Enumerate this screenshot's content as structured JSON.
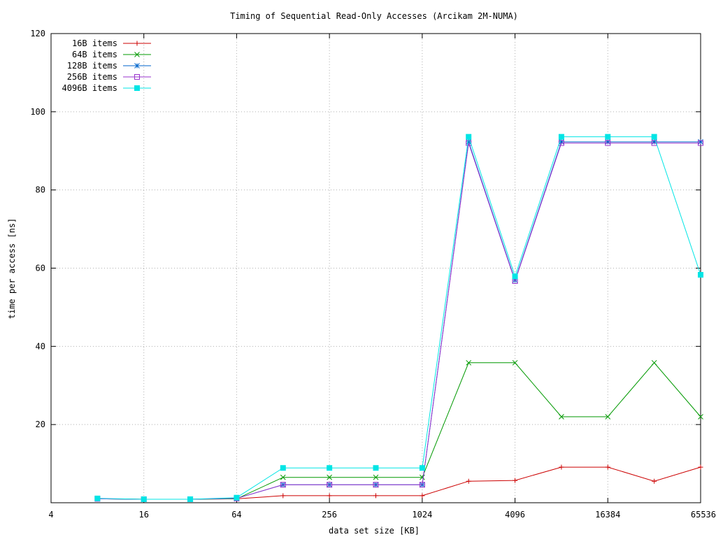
{
  "chart_data": {
    "type": "line",
    "title": "Timing of Sequential Read-Only Accesses (Arcikam 2M-NUMA)",
    "xlabel": "data set size [KB]",
    "ylabel": "time per access [ns]",
    "x_scale": "log2",
    "xlim": [
      4,
      65536
    ],
    "ylim": [
      0,
      120
    ],
    "x_ticks": [
      4,
      16,
      64,
      256,
      1024,
      4096,
      16384,
      65536
    ],
    "y_ticks": [
      20,
      40,
      60,
      80,
      100,
      120
    ],
    "grid": true,
    "legend_position": "top-left",
    "x": [
      8,
      16,
      32,
      64,
      128,
      256,
      512,
      1024,
      2048,
      4096,
      8192,
      16384,
      32768,
      65536
    ],
    "series": [
      {
        "name": "16B items",
        "color": "#cc0000",
        "marker": "plus",
        "values": [
          1.0,
          0.9,
          0.9,
          1.0,
          1.8,
          1.8,
          1.8,
          1.8,
          5.5,
          5.7,
          9.1,
          9.1,
          5.5,
          9.1
        ]
      },
      {
        "name": "64B items",
        "color": "#009900",
        "marker": "x",
        "values": [
          1.0,
          0.9,
          0.9,
          1.0,
          6.5,
          6.5,
          6.5,
          6.5,
          35.8,
          35.8,
          22.0,
          22.0,
          35.8,
          22.0
        ]
      },
      {
        "name": "128B items",
        "color": "#0066cc",
        "marker": "star",
        "values": [
          1.0,
          0.9,
          0.9,
          1.1,
          4.6,
          4.6,
          4.6,
          4.6,
          92.3,
          56.9,
          92.3,
          92.3,
          92.3,
          92.3
        ]
      },
      {
        "name": "256B items",
        "color": "#9933cc",
        "marker": "box",
        "values": [
          1.0,
          0.9,
          0.9,
          1.1,
          4.6,
          4.6,
          4.6,
          4.6,
          92.0,
          56.7,
          92.0,
          92.0,
          92.0,
          92.0
        ]
      },
      {
        "name": "4096B items",
        "color": "#00e5e5",
        "marker": "filled-box",
        "values": [
          1.1,
          0.9,
          0.9,
          1.3,
          8.9,
          8.9,
          8.9,
          8.9,
          93.6,
          57.9,
          93.6,
          93.6,
          93.6,
          58.3
        ]
      }
    ]
  }
}
